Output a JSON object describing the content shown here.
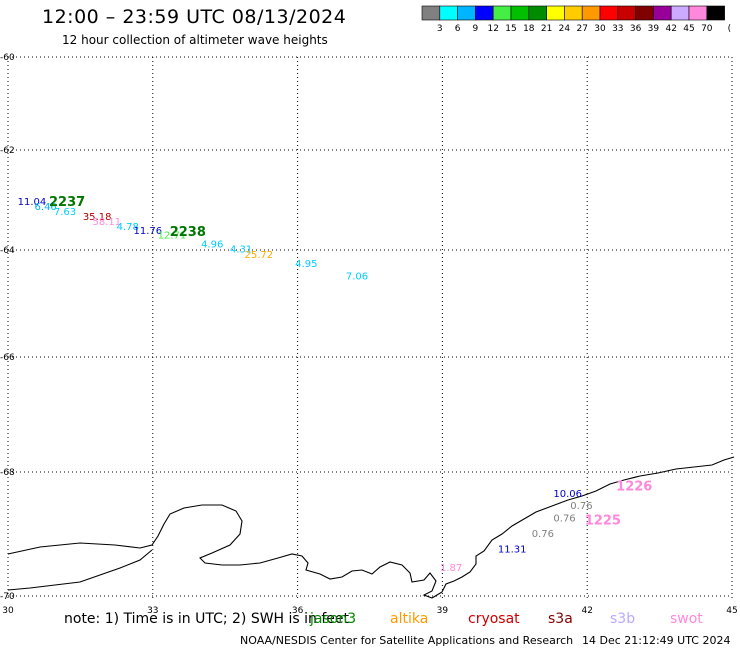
{
  "header": {
    "title": "12:00 – 23:59 UTC 08/13/2024",
    "subtitle": "12 hour collection of altimeter wave heights"
  },
  "colorbar": {
    "unit": "(ft)",
    "bins": [
      {
        "label": "3",
        "color": "#808080"
      },
      {
        "label": "6",
        "color": "#00ffff"
      },
      {
        "label": "9",
        "color": "#00b4ff"
      },
      {
        "label": "12",
        "color": "#0000ff"
      },
      {
        "label": "15",
        "color": "#44ee44"
      },
      {
        "label": "18",
        "color": "#00c000"
      },
      {
        "label": "21",
        "color": "#008c00"
      },
      {
        "label": "24",
        "color": "#ffff00"
      },
      {
        "label": "27",
        "color": "#ffcc00"
      },
      {
        "label": "30",
        "color": "#ff9900"
      },
      {
        "label": "33",
        "color": "#ff0000"
      },
      {
        "label": "36",
        "color": "#c80000"
      },
      {
        "label": "39",
        "color": "#800000"
      },
      {
        "label": "42",
        "color": "#990099"
      },
      {
        "label": "45",
        "color": "#ccaaff"
      },
      {
        "label": "70",
        "color": "#ff88dd"
      },
      {
        "label": "",
        "color": "#000000"
      }
    ]
  },
  "chart_data": {
    "type": "scatter",
    "xlim": [
      30,
      45
    ],
    "ylim": [
      -70,
      -60
    ],
    "x_ticks": [
      "30",
      "33",
      "36",
      "39",
      "42",
      "45"
    ],
    "y_ticks": [
      "-60",
      "-62",
      "-64",
      "-66",
      "-68",
      "-70"
    ],
    "grid": true,
    "wave_heights": [
      {
        "lon": 30.2,
        "lat": -63.1,
        "text": "11.04",
        "color": "#0000cc"
      },
      {
        "lon": 30.55,
        "lat": -63.2,
        "text": "6.46",
        "color": "#00b4ff"
      },
      {
        "lon": 30.95,
        "lat": -63.3,
        "text": "7.63",
        "color": "#00ccff"
      },
      {
        "lon": 31.55,
        "lat": -63.4,
        "text": "35.18",
        "color": "#b00000"
      },
      {
        "lon": 31.75,
        "lat": -63.5,
        "text": "58.11",
        "color": "#ff88dd"
      },
      {
        "lon": 32.25,
        "lat": -63.6,
        "text": "4.78",
        "color": "#00ccff"
      },
      {
        "lon": 32.6,
        "lat": -63.68,
        "text": "11.76",
        "color": "#0000cc"
      },
      {
        "lon": 33.1,
        "lat": -63.77,
        "text": "12.71",
        "color": "#44ee44"
      },
      {
        "lon": 34.0,
        "lat": -63.95,
        "text": "4.96",
        "color": "#00ccff"
      },
      {
        "lon": 34.6,
        "lat": -64.05,
        "text": "4.31",
        "color": "#00ccff"
      },
      {
        "lon": 34.9,
        "lat": -64.15,
        "text": "25.72",
        "color": "#ffaa00"
      },
      {
        "lon": 35.95,
        "lat": -64.32,
        "text": "4.95",
        "color": "#00ccff"
      },
      {
        "lon": 37.0,
        "lat": -64.55,
        "text": "7.06",
        "color": "#00ccff"
      },
      {
        "lon": 38.95,
        "lat": -69.6,
        "text": "1.87",
        "color": "#ff88dd"
      },
      {
        "lon": 41.3,
        "lat": -68.4,
        "text": "10.06",
        "color": "#0000cc"
      },
      {
        "lon": 41.65,
        "lat": -68.6,
        "text": "0.76",
        "color": "#808080"
      },
      {
        "lon": 41.3,
        "lat": -68.8,
        "text": "0.76",
        "color": "#808080"
      },
      {
        "lon": 40.85,
        "lat": -69.05,
        "text": "0.76",
        "color": "#808080"
      },
      {
        "lon": 40.15,
        "lat": -69.3,
        "text": "11.31",
        "color": "#0000cc"
      }
    ],
    "pass_ids": [
      {
        "lon": 30.85,
        "lat": -63.12,
        "text": "2237",
        "color": "#007700"
      },
      {
        "lon": 33.35,
        "lat": -63.72,
        "text": "2238",
        "color": "#007700"
      },
      {
        "lon": 42.6,
        "lat": -68.3,
        "text": "1226",
        "color": "#ff88dd"
      },
      {
        "lon": 41.95,
        "lat": -68.85,
        "text": "1225",
        "color": "#ff88dd"
      }
    ]
  },
  "footer": {
    "note": "note: 1) Time is in UTC; 2) SWH is in feet",
    "legend": [
      {
        "label": "jason3",
        "color": "#008800"
      },
      {
        "label": "altika",
        "color": "#ff9900"
      },
      {
        "label": "cryosat",
        "color": "#cc0000"
      },
      {
        "label": "s3a",
        "color": "#880000"
      },
      {
        "label": "s3b",
        "color": "#bbaaff"
      },
      {
        "label": "swot",
        "color": "#ff88dd"
      }
    ],
    "credit": "NOAA/NESDIS Center for Satellite Applications and Research",
    "timestamp": "14 Dec 21:12:49 UTC 2024"
  }
}
